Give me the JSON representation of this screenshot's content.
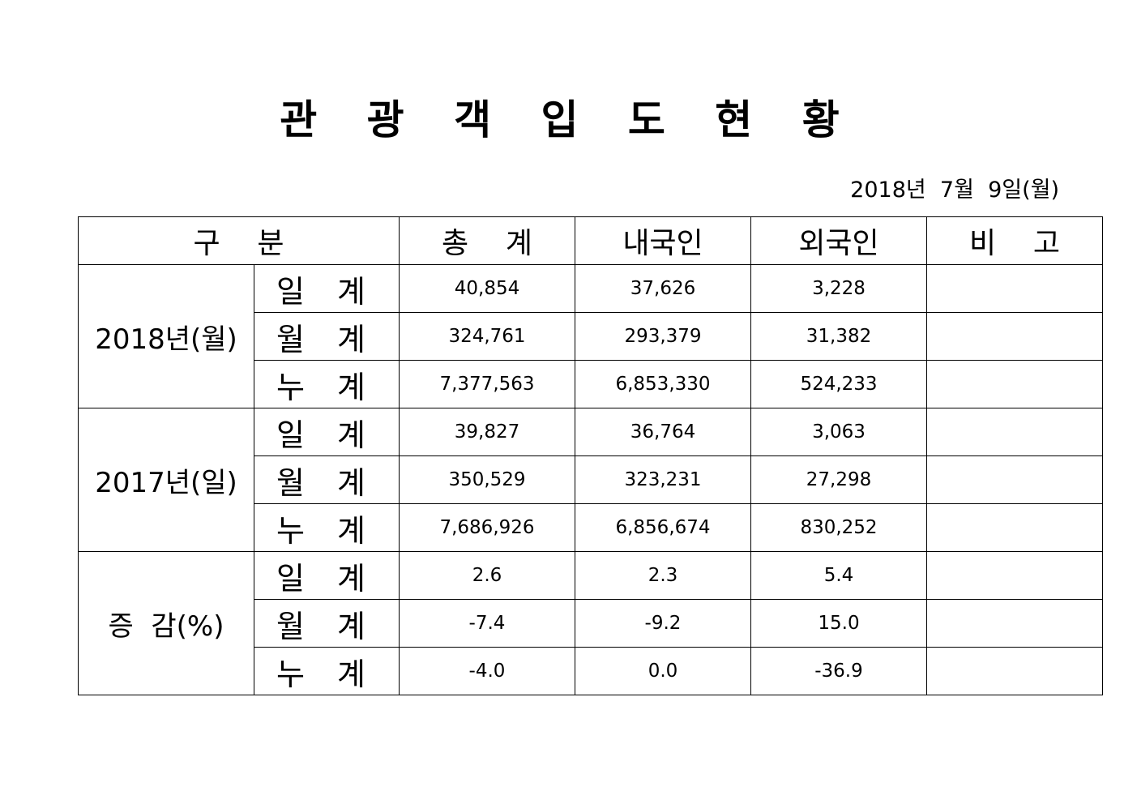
{
  "title": "관 광 객 입 도 현 황",
  "date": "2018년  7월  9일(월)",
  "table": {
    "headers": [
      "구    분",
      "총    계",
      "내국인",
      "외국인",
      "비    고"
    ],
    "groups": [
      {
        "label": "2018년(월)",
        "rows": [
          {
            "sub": "일 계",
            "total": "40,854",
            "domestic": "37,626",
            "foreign": "3,228",
            "note": ""
          },
          {
            "sub": "월 계",
            "total": "324,761",
            "domestic": "293,379",
            "foreign": "31,382",
            "note": ""
          },
          {
            "sub": "누 계",
            "total": "7,377,563",
            "domestic": "6,853,330",
            "foreign": "524,233",
            "note": ""
          }
        ]
      },
      {
        "label": "2017년(일)",
        "rows": [
          {
            "sub": "일 계",
            "total": "39,827",
            "domestic": "36,764",
            "foreign": "3,063",
            "note": ""
          },
          {
            "sub": "월 계",
            "total": "350,529",
            "domestic": "323,231",
            "foreign": "27,298",
            "note": ""
          },
          {
            "sub": "누 계",
            "total": "7,686,926",
            "domestic": "6,856,674",
            "foreign": "830,252",
            "note": ""
          }
        ]
      },
      {
        "label": "증  감(%)",
        "rows": [
          {
            "sub": "일 계",
            "total": "2.6",
            "domestic": "2.3",
            "foreign": "5.4",
            "note": ""
          },
          {
            "sub": "월 계",
            "total": "-7.4",
            "domestic": "-9.2",
            "foreign": "15.0",
            "note": ""
          },
          {
            "sub": "누 계",
            "total": "-4.0",
            "domestic": "0.0",
            "foreign": "-36.9",
            "note": ""
          }
        ]
      }
    ]
  }
}
